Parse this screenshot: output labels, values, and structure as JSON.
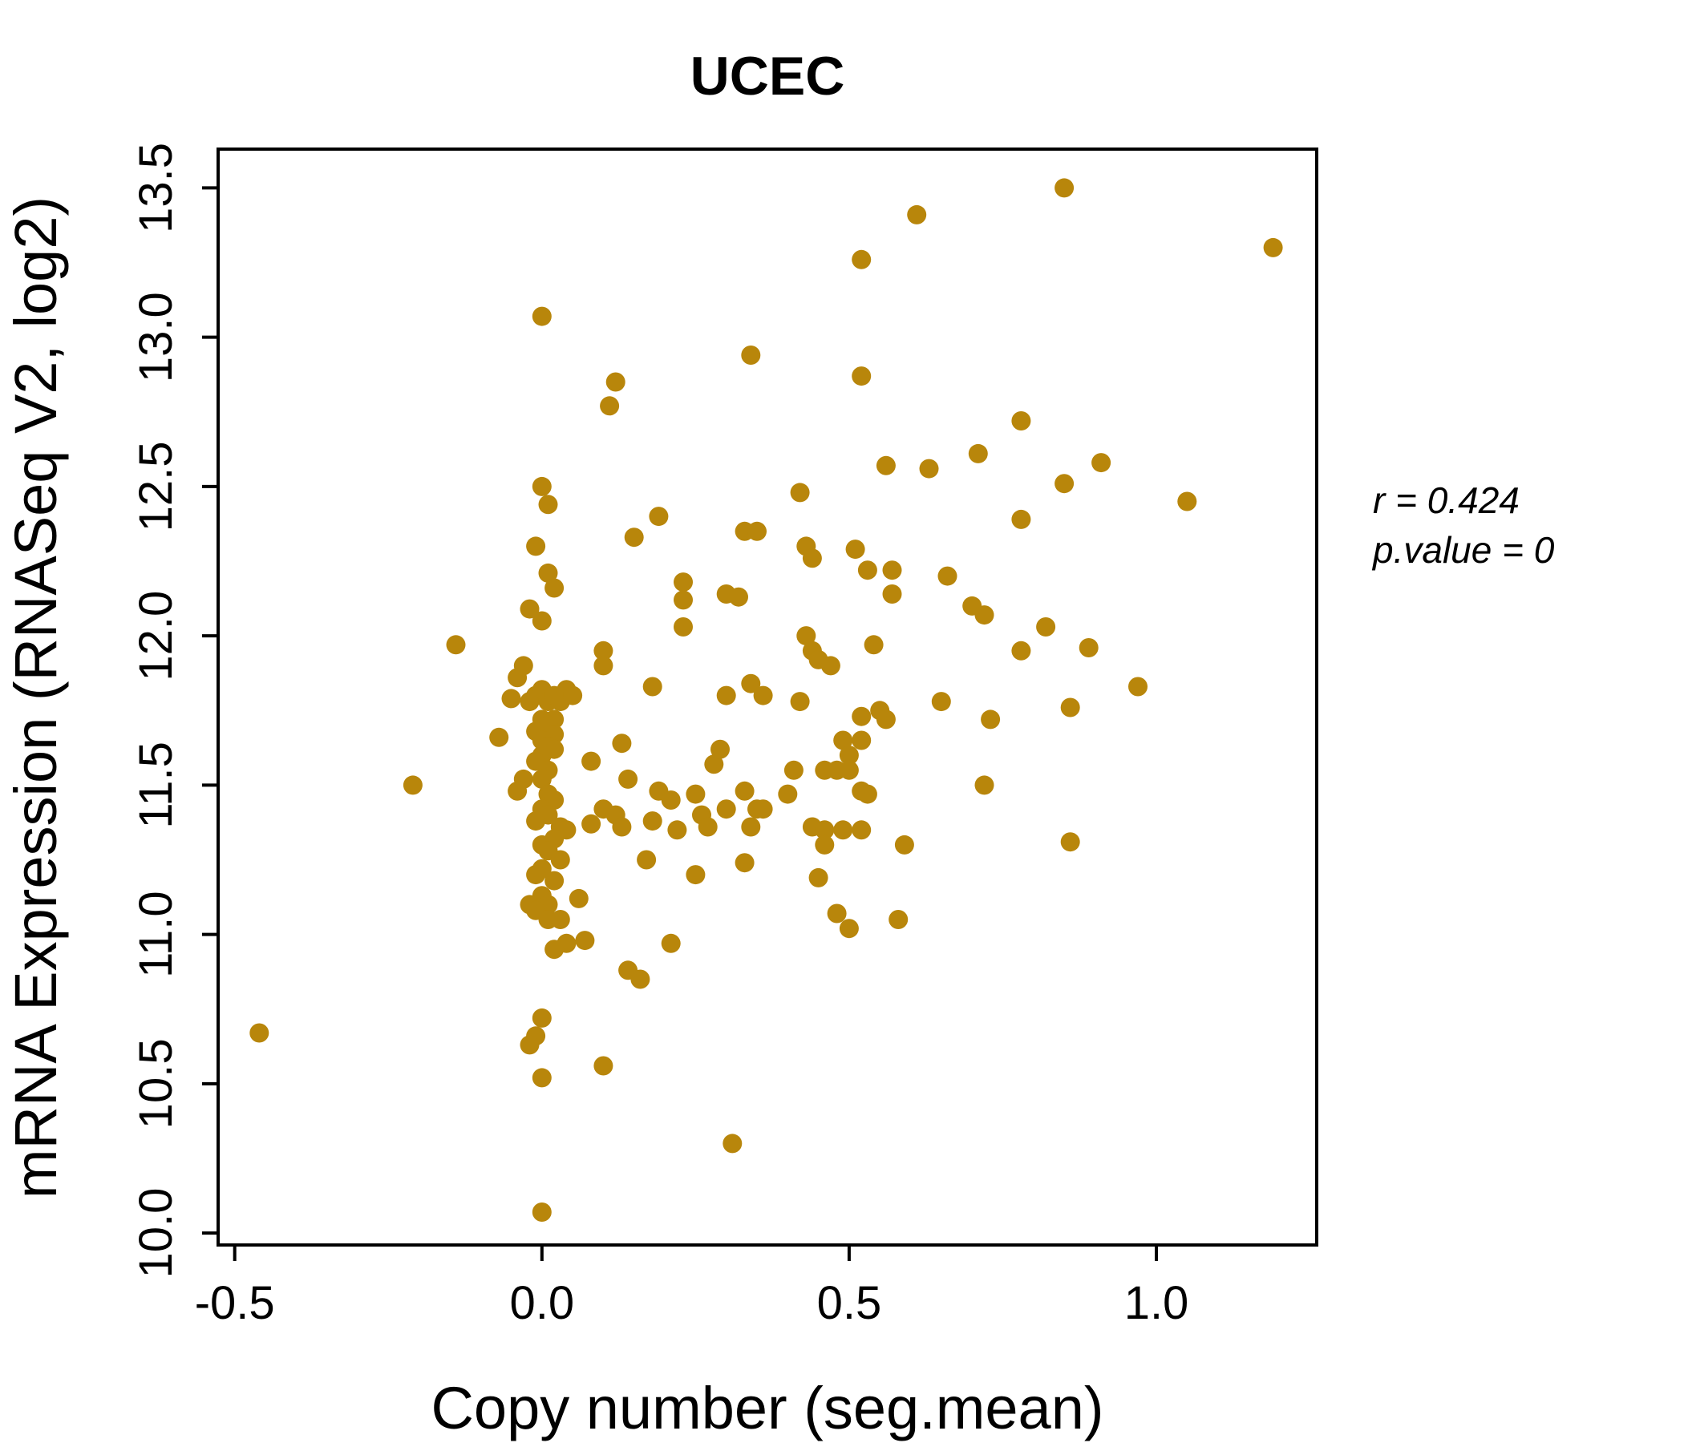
{
  "colors": {
    "point": "#B8860B",
    "title": "#B8860B",
    "axis": "#000000"
  },
  "annotation": {
    "line1": "r = 0.424",
    "line2": "p.value = 0"
  },
  "chart_data": {
    "type": "scatter",
    "title": "UCEC",
    "xlabel": "Copy number (seg.mean)",
    "ylabel": "mRNA Expression (RNASeq V2, log2)",
    "xlim": [
      -0.527,
      1.261
    ],
    "ylim": [
      9.96,
      13.63
    ],
    "xticks": [
      -0.5,
      0.0,
      0.5,
      1.0
    ],
    "xtick_labels": [
      "-0.5",
      "0.0",
      "0.5",
      "1.0"
    ],
    "yticks": [
      10.0,
      10.5,
      11.0,
      11.5,
      12.0,
      12.5,
      13.0,
      13.5
    ],
    "ytick_labels": [
      "10.0",
      "10.5",
      "11.0",
      "11.5",
      "12.0",
      "12.5",
      "13.0",
      "13.5"
    ],
    "grid": false,
    "legend": null,
    "annotations": [
      "r = 0.424",
      "p.value = 0"
    ],
    "points": [
      [
        -0.46,
        10.67
      ],
      [
        -0.21,
        11.5
      ],
      [
        -0.14,
        11.97
      ],
      [
        -0.07,
        11.66
      ],
      [
        -0.05,
        11.79
      ],
      [
        -0.04,
        11.86
      ],
      [
        -0.03,
        11.9
      ],
      [
        -0.03,
        11.52
      ],
      [
        -0.04,
        11.48
      ],
      [
        -0.02,
        12.09
      ],
      [
        -0.01,
        12.3
      ],
      [
        0.0,
        13.07
      ],
      [
        0.0,
        12.5
      ],
      [
        0.01,
        12.44
      ],
      [
        0.01,
        12.21
      ],
      [
        0.02,
        12.16
      ],
      [
        0.0,
        12.05
      ],
      [
        -0.02,
        11.78
      ],
      [
        -0.01,
        11.8
      ],
      [
        0.0,
        11.82
      ],
      [
        0.01,
        11.78
      ],
      [
        0.02,
        11.8
      ],
      [
        0.03,
        11.78
      ],
      [
        0.04,
        11.82
      ],
      [
        0.05,
        11.8
      ],
      [
        0.02,
        11.72
      ],
      [
        0.0,
        11.72
      ],
      [
        0.01,
        11.7
      ],
      [
        -0.01,
        11.68
      ],
      [
        0.02,
        11.67
      ],
      [
        0.0,
        11.65
      ],
      [
        0.01,
        11.63
      ],
      [
        0.02,
        11.62
      ],
      [
        0.0,
        11.6
      ],
      [
        -0.01,
        11.58
      ],
      [
        0.01,
        11.55
      ],
      [
        0.0,
        11.52
      ],
      [
        0.01,
        11.47
      ],
      [
        0.02,
        11.45
      ],
      [
        0.0,
        11.42
      ],
      [
        0.01,
        11.4
      ],
      [
        -0.01,
        11.38
      ],
      [
        0.03,
        11.36
      ],
      [
        0.04,
        11.35
      ],
      [
        0.02,
        11.32
      ],
      [
        0.0,
        11.3
      ],
      [
        0.01,
        11.28
      ],
      [
        0.03,
        11.25
      ],
      [
        0.0,
        11.22
      ],
      [
        -0.01,
        11.2
      ],
      [
        0.02,
        11.18
      ],
      [
        0.0,
        11.13
      ],
      [
        0.01,
        11.1
      ],
      [
        -0.02,
        11.1
      ],
      [
        0.06,
        11.12
      ],
      [
        -0.01,
        11.08
      ],
      [
        0.01,
        11.05
      ],
      [
        0.03,
        11.05
      ],
      [
        0.07,
        10.98
      ],
      [
        0.04,
        10.97
      ],
      [
        0.02,
        10.95
      ],
      [
        0.0,
        10.72
      ],
      [
        -0.01,
        10.66
      ],
      [
        -0.02,
        10.63
      ],
      [
        0.0,
        10.52
      ],
      [
        0.0,
        10.07
      ],
      [
        0.08,
        11.58
      ],
      [
        0.08,
        11.37
      ],
      [
        0.1,
        11.95
      ],
      [
        0.1,
        11.9
      ],
      [
        0.1,
        11.42
      ],
      [
        0.1,
        10.56
      ],
      [
        0.11,
        12.77
      ],
      [
        0.12,
        12.85
      ],
      [
        0.12,
        11.4
      ],
      [
        0.13,
        11.64
      ],
      [
        0.13,
        11.36
      ],
      [
        0.14,
        11.52
      ],
      [
        0.14,
        10.88
      ],
      [
        0.15,
        12.33
      ],
      [
        0.16,
        10.85
      ],
      [
        0.17,
        11.25
      ],
      [
        0.18,
        11.83
      ],
      [
        0.18,
        11.38
      ],
      [
        0.19,
        12.4
      ],
      [
        0.19,
        11.48
      ],
      [
        0.21,
        11.45
      ],
      [
        0.21,
        10.97
      ],
      [
        0.22,
        11.35
      ],
      [
        0.23,
        12.18
      ],
      [
        0.23,
        12.12
      ],
      [
        0.23,
        12.03
      ],
      [
        0.25,
        11.47
      ],
      [
        0.25,
        11.2
      ],
      [
        0.26,
        11.4
      ],
      [
        0.27,
        11.36
      ],
      [
        0.28,
        11.57
      ],
      [
        0.29,
        11.62
      ],
      [
        0.3,
        12.14
      ],
      [
        0.3,
        11.8
      ],
      [
        0.3,
        11.42
      ],
      [
        0.31,
        10.3
      ],
      [
        0.32,
        12.13
      ],
      [
        0.33,
        12.35
      ],
      [
        0.33,
        11.48
      ],
      [
        0.33,
        11.24
      ],
      [
        0.34,
        12.94
      ],
      [
        0.34,
        11.84
      ],
      [
        0.34,
        11.36
      ],
      [
        0.35,
        12.35
      ],
      [
        0.35,
        11.42
      ],
      [
        0.36,
        11.8
      ],
      [
        0.36,
        11.42
      ],
      [
        0.4,
        11.47
      ],
      [
        0.41,
        11.55
      ],
      [
        0.42,
        12.48
      ],
      [
        0.42,
        11.78
      ],
      [
        0.43,
        12.3
      ],
      [
        0.43,
        12.0
      ],
      [
        0.44,
        12.26
      ],
      [
        0.44,
        11.95
      ],
      [
        0.44,
        11.36
      ],
      [
        0.45,
        11.92
      ],
      [
        0.45,
        11.19
      ],
      [
        0.46,
        11.55
      ],
      [
        0.46,
        11.35
      ],
      [
        0.46,
        11.3
      ],
      [
        0.47,
        11.9
      ],
      [
        0.48,
        11.55
      ],
      [
        0.48,
        11.07
      ],
      [
        0.49,
        11.65
      ],
      [
        0.49,
        11.35
      ],
      [
        0.5,
        11.6
      ],
      [
        0.5,
        11.55
      ],
      [
        0.5,
        11.02
      ],
      [
        0.51,
        12.29
      ],
      [
        0.52,
        13.26
      ],
      [
        0.52,
        12.87
      ],
      [
        0.52,
        11.73
      ],
      [
        0.52,
        11.65
      ],
      [
        0.52,
        11.48
      ],
      [
        0.52,
        11.35
      ],
      [
        0.53,
        12.22
      ],
      [
        0.53,
        11.47
      ],
      [
        0.54,
        11.97
      ],
      [
        0.55,
        11.75
      ],
      [
        0.56,
        12.57
      ],
      [
        0.56,
        11.72
      ],
      [
        0.57,
        12.22
      ],
      [
        0.57,
        12.14
      ],
      [
        0.58,
        11.05
      ],
      [
        0.59,
        11.3
      ],
      [
        0.61,
        13.41
      ],
      [
        0.63,
        12.56
      ],
      [
        0.65,
        11.78
      ],
      [
        0.66,
        12.2
      ],
      [
        0.7,
        12.1
      ],
      [
        0.71,
        12.61
      ],
      [
        0.72,
        12.07
      ],
      [
        0.72,
        11.5
      ],
      [
        0.73,
        11.72
      ],
      [
        0.78,
        12.72
      ],
      [
        0.78,
        12.39
      ],
      [
        0.78,
        11.95
      ],
      [
        0.82,
        12.03
      ],
      [
        0.85,
        13.5
      ],
      [
        0.85,
        12.51
      ],
      [
        0.86,
        11.76
      ],
      [
        0.86,
        11.31
      ],
      [
        0.89,
        11.96
      ],
      [
        0.91,
        12.58
      ],
      [
        0.97,
        11.83
      ],
      [
        1.05,
        12.45
      ],
      [
        1.19,
        13.3
      ]
    ]
  }
}
